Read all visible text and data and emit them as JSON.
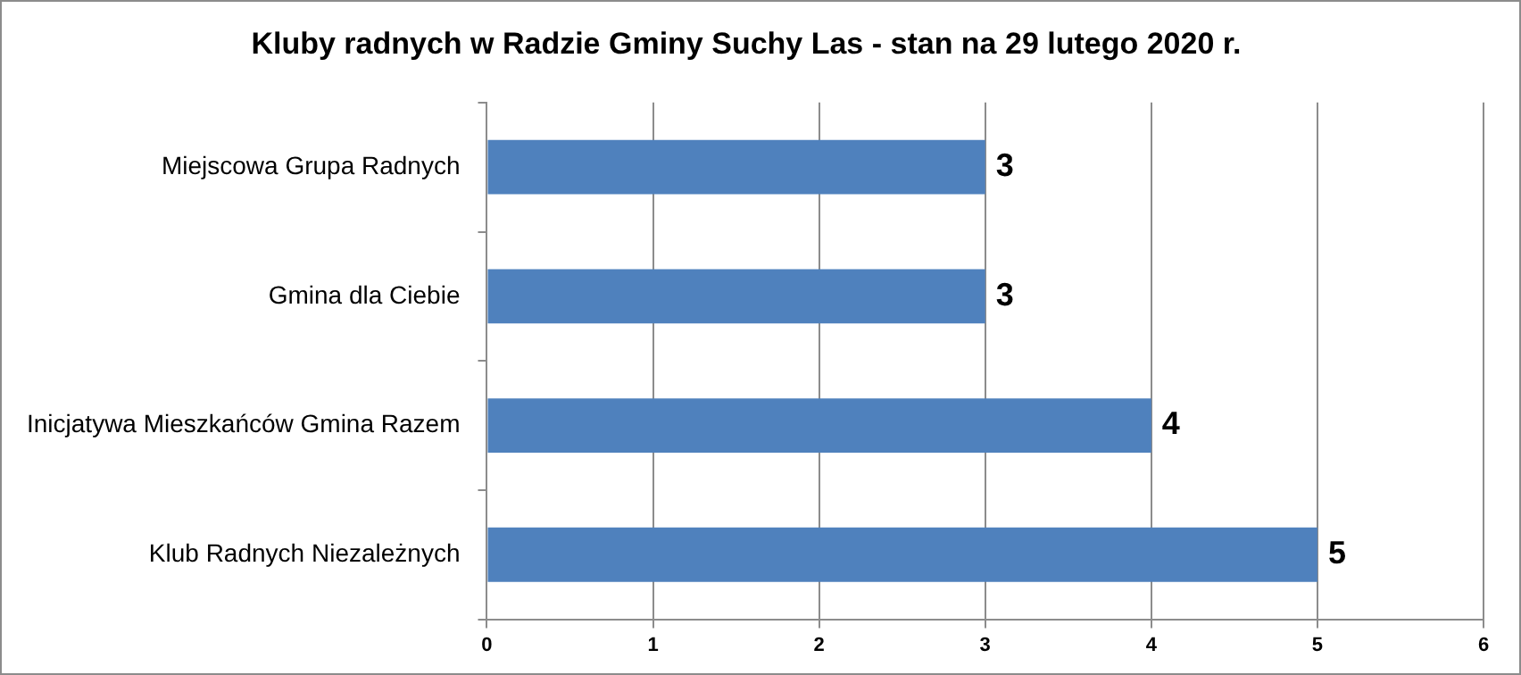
{
  "chart_data": {
    "type": "bar",
    "orientation": "horizontal",
    "title": "Kluby radnych w Radzie Gminy Suchy Las - stan na 29 lutego 2020 r.",
    "categories": [
      "Miejscowa Grupa Radnych",
      "Gmina dla Ciebie",
      "Inicjatywa Mieszkańców Gmina Razem",
      "Klub Radnych Niezależnych"
    ],
    "values": [
      3,
      3,
      4,
      5
    ],
    "color": "#4f81bd",
    "xlim": [
      0,
      6
    ],
    "xticks": [
      0,
      1,
      2,
      3,
      4,
      5,
      6
    ],
    "grid": "x",
    "data_labels": true
  }
}
